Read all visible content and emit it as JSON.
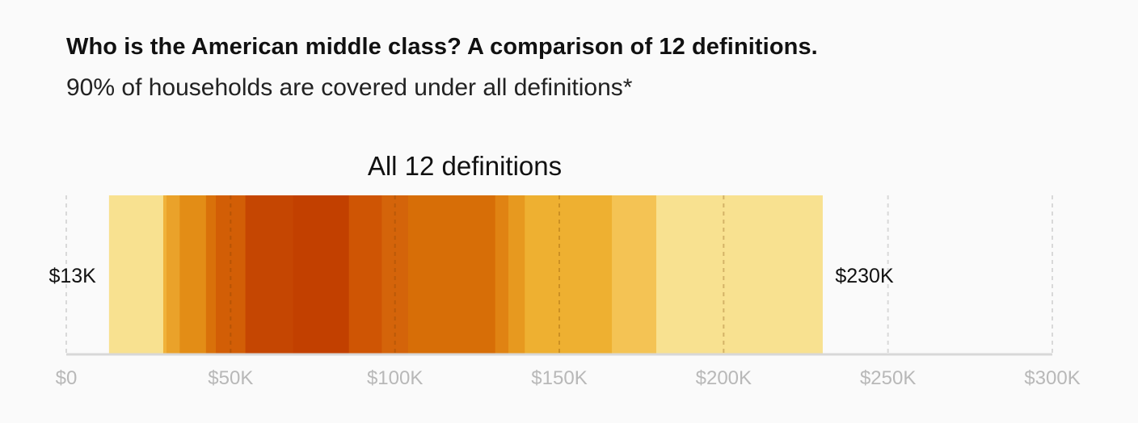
{
  "header": {
    "title": "Who is the American middle class? A comparison of 12 definitions.",
    "subtitle": "90% of households are covered under all definitions*"
  },
  "chart_data": {
    "type": "bar",
    "title": "Who is the American middle class? A comparison of 12 definitions.",
    "subtitle": "90% of households are covered under all definitions*",
    "panel_label": "All 12 definitions",
    "xlim": [
      0,
      300000
    ],
    "x_ticks": [
      0,
      50000,
      100000,
      150000,
      200000,
      250000,
      300000
    ],
    "x_tick_labels": [
      "$0",
      "$50K",
      "$100K",
      "$150K",
      "$200K",
      "$250K",
      "$300K"
    ],
    "grid": true,
    "range_min": 13000,
    "range_max": 230000,
    "range_min_label": "$13K",
    "range_max_label": "$230K",
    "overlap_bands": [
      {
        "from": 13000,
        "to": 29500,
        "count": 1,
        "color": "#f8e190"
      },
      {
        "from": 29500,
        "to": 30500,
        "count": 2,
        "color": "#f0b23a"
      },
      {
        "from": 30500,
        "to": 34500,
        "count": 3,
        "color": "#eaa22a"
      },
      {
        "from": 34500,
        "to": 42500,
        "count": 4,
        "color": "#e38d16"
      },
      {
        "from": 42500,
        "to": 45500,
        "count": 6,
        "color": "#d9710a"
      },
      {
        "from": 45500,
        "to": 54500,
        "count": 7,
        "color": "#d25e06"
      },
      {
        "from": 54500,
        "to": 69000,
        "count": 9,
        "color": "#c54602"
      },
      {
        "from": 69000,
        "to": 86000,
        "count": 10,
        "color": "#c24000"
      },
      {
        "from": 86000,
        "to": 96000,
        "count": 8,
        "color": "#cf5504"
      },
      {
        "from": 96000,
        "to": 104000,
        "count": 7,
        "color": "#d4640a"
      },
      {
        "from": 104000,
        "to": 130500,
        "count": 6,
        "color": "#d76e07"
      },
      {
        "from": 130500,
        "to": 134500,
        "count": 5,
        "color": "#e08313"
      },
      {
        "from": 134500,
        "to": 139500,
        "count": 4,
        "color": "#e7991f"
      },
      {
        "from": 139500,
        "to": 166000,
        "count": 3,
        "color": "#eeb031"
      },
      {
        "from": 166000,
        "to": 179500,
        "count": 2,
        "color": "#f4c354"
      },
      {
        "from": 179500,
        "to": 230000,
        "count": 1,
        "color": "#f8e190"
      }
    ]
  }
}
